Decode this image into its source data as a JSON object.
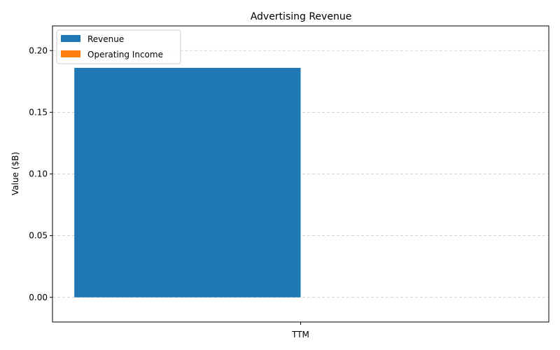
{
  "chart_data": {
    "type": "bar",
    "title": "Advertising Revenue",
    "xlabel": "",
    "ylabel": "Value ($B)",
    "categories": [
      "TTM"
    ],
    "series": [
      {
        "name": "Revenue",
        "values": [
          0.186
        ],
        "color": "#1f77b4"
      },
      {
        "name": "Operating Income",
        "values": [
          0
        ],
        "color": "#ff7f0e"
      }
    ],
    "ylim": [
      -0.02,
      0.22
    ],
    "yticks": [
      0.0,
      0.05,
      0.1,
      0.15,
      0.2
    ],
    "ytick_labels": [
      "0.00",
      "0.05",
      "0.10",
      "0.15",
      "0.20"
    ],
    "grid": "y-dashed",
    "legend_position": "top-left"
  }
}
